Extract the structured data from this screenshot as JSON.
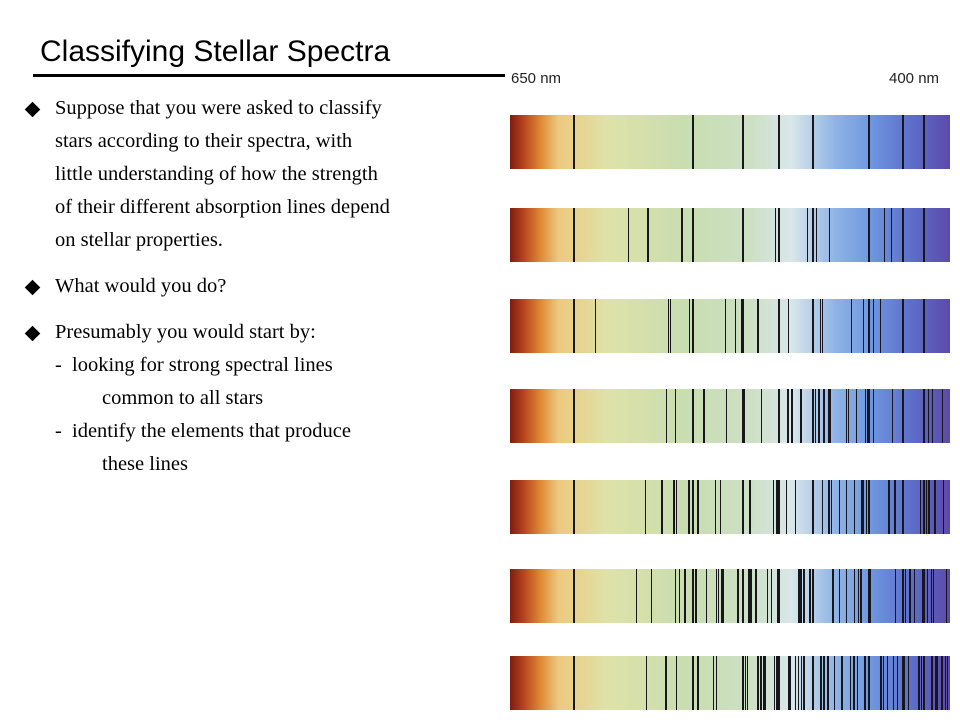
{
  "title": "Classifying Stellar Spectra",
  "bullets": [
    {
      "lines": [
        "Suppose that you were asked to classify",
        "stars according to their spectra, with",
        "little understanding of how the strength",
        "of their different absorption lines depend",
        "on stellar properties."
      ]
    },
    {
      "lines": [
        "What would you do?"
      ]
    },
    {
      "lines": [
        "Presumably you would start by:"
      ]
    }
  ],
  "sub_items": [
    {
      "dash": "-",
      "lines": [
        "looking for strong spectral lines",
        "common to all stars"
      ]
    },
    {
      "dash": "-",
      "lines": [
        "identify the elements that produce",
        "these lines"
      ]
    }
  ],
  "figure": {
    "label_left": "650 nm",
    "label_right": "400 nm",
    "spectra_count": 7
  }
}
